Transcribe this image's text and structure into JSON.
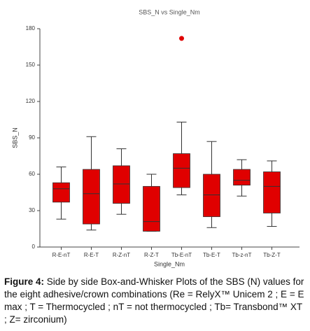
{
  "chart_data": {
    "type": "box",
    "title": "SBS_N vs Single_Nm",
    "x_label": "Single_Nm",
    "y_label": "SBS_N",
    "categories": [
      "R-E-nT",
      "R-E-T",
      "R-Z-nT",
      "R-Z-T",
      "Tb-E-nT",
      "Tb-E-T",
      "Tb-z-nT",
      "Tb-Z-T"
    ],
    "min": [
      23,
      14,
      27,
      13,
      43,
      16,
      42,
      17
    ],
    "q1": [
      37,
      19,
      36,
      13,
      49,
      25,
      51,
      28
    ],
    "median": [
      48,
      44,
      52,
      21,
      65,
      43,
      55,
      50
    ],
    "q3": [
      53,
      64,
      67,
      50,
      77,
      60,
      64,
      62
    ],
    "max": [
      66,
      91,
      81,
      60,
      103,
      87,
      72,
      71
    ],
    "outliers": [
      {
        "category": "Tb-E-nT",
        "value": 172
      }
    ],
    "color": "#e00000",
    "ylim": [
      0,
      180
    ],
    "yticks": [
      0,
      30,
      60,
      90,
      120,
      150,
      180
    ]
  },
  "caption": {
    "label": "Figure 4:",
    "text": "Side by side Box-and-Whisker Plots of the SBS (N) values for the eight adhesive/crown combinations (Re = RelyX™ Unicem 2 ; E = E max ; T = Thermocycled ; nT = not thermocycled ; Tb= Transbond™ XT ; Z= zirconium)"
  }
}
